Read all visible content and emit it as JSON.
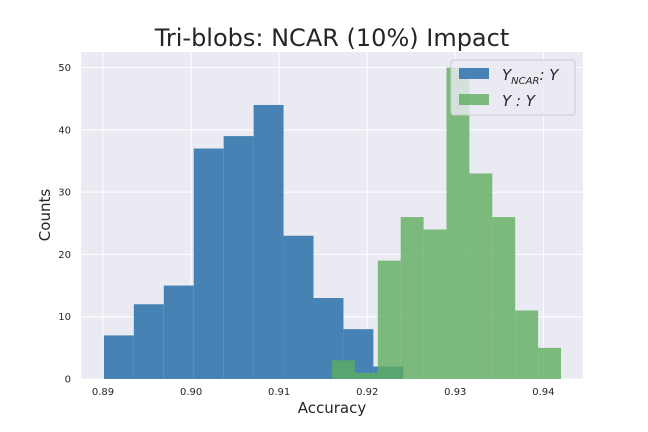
{
  "chart_data": {
    "type": "histogram",
    "title": "Tri-blobs: NCAR (10%) Impact",
    "xlabel": "Accuracy",
    "ylabel": "Counts",
    "xlim": [
      0.8875,
      0.9445
    ],
    "ylim": [
      0,
      52.5
    ],
    "x_ticks": [
      0.89,
      0.9,
      0.91,
      0.92,
      0.93,
      0.94
    ],
    "x_tick_labels": [
      "0.89",
      "0.90",
      "0.91",
      "0.92",
      "0.93",
      "0.94"
    ],
    "y_ticks": [
      0,
      10,
      20,
      30,
      40,
      50
    ],
    "y_tick_labels": [
      "0",
      "10",
      "20",
      "30",
      "40",
      "50"
    ],
    "grid": true,
    "legend_position": "top-right",
    "series": [
      {
        "legend_main": "Y",
        "legend_sub": "NCAR",
        "legend_tail": ": Y",
        "color": "#4682b4",
        "bin_edges": [
          0.8901,
          0.8935,
          0.8969,
          0.9003,
          0.9037,
          0.9071,
          0.9105,
          0.9139,
          0.9173,
          0.9207,
          0.9241
        ],
        "counts": [
          7,
          12,
          15,
          37,
          39,
          44,
          23,
          13,
          8,
          2
        ]
      },
      {
        "legend_main": "Y : Y",
        "color": "#5fad5f",
        "bin_edges": [
          0.916,
          0.9186,
          0.9212,
          0.9238,
          0.9264,
          0.929,
          0.9316,
          0.9342,
          0.9368,
          0.9394,
          0.942
        ],
        "counts": [
          3,
          1,
          19,
          26,
          24,
          50,
          33,
          26,
          11,
          5
        ]
      }
    ]
  }
}
